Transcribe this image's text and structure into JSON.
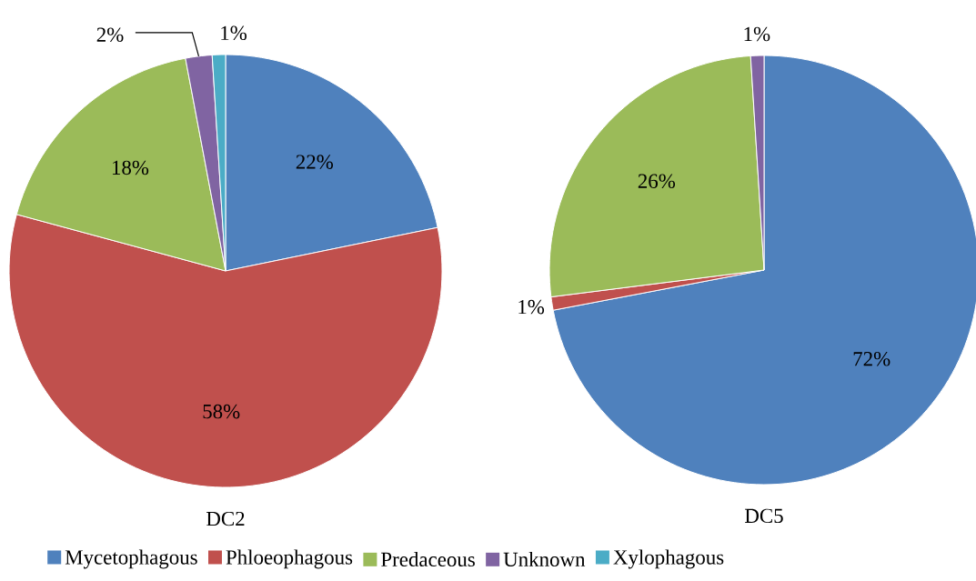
{
  "chart_data": [
    {
      "type": "pie",
      "title": "DC2",
      "categories": [
        "Mycetophagous",
        "Phloeophagous",
        "Predaceous",
        "Unknown",
        "Xylophagous"
      ],
      "values": [
        22,
        58,
        18,
        2,
        1
      ],
      "value_labels": [
        "22%",
        "58%",
        "18%",
        "2%",
        "1%"
      ],
      "colors": [
        "#4f81bd",
        "#c0504d",
        "#9bbb59",
        "#8064a2",
        "#4bacc6"
      ],
      "legend": "bottom"
    },
    {
      "type": "pie",
      "title": "DC5",
      "categories": [
        null,
        null,
        null,
        null
      ],
      "values": [
        72,
        1,
        26,
        1
      ],
      "value_labels": [
        "72%",
        "1%",
        "26%",
        "1%"
      ],
      "colors": [
        "#4f81bd",
        "#c0504d",
        "#9bbb59",
        "#8064a2"
      ]
    }
  ]
}
